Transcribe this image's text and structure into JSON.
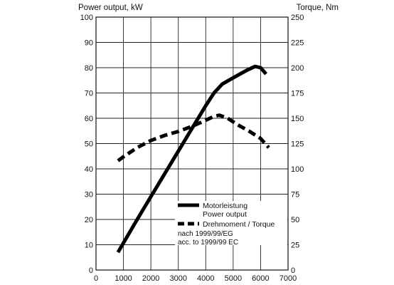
{
  "chart_data": {
    "type": "line",
    "xlabel": "",
    "ylabel_left": "Power output, kW",
    "ylabel_right": "Torque, Nm",
    "xlim": [
      0,
      7000
    ],
    "ylim_left": [
      0,
      100
    ],
    "ylim_right": [
      0,
      250
    ],
    "x_ticks": [
      0,
      1000,
      2000,
      3000,
      4000,
      5000,
      6000,
      7000
    ],
    "y_ticks_left": [
      0,
      10,
      20,
      30,
      40,
      50,
      60,
      70,
      80,
      90,
      100
    ],
    "y_ticks_right": [
      0,
      25,
      50,
      75,
      100,
      125,
      150,
      175,
      200,
      225,
      250
    ],
    "grid": true,
    "legend_position": "lower-right",
    "series": [
      {
        "name": "Motorleistung",
        "name_en": "Power output",
        "axis": "left",
        "style": "solid",
        "points": [
          [
            800,
            7
          ],
          [
            1500,
            20
          ],
          [
            2000,
            29
          ],
          [
            2500,
            38
          ],
          [
            3000,
            47
          ],
          [
            3500,
            56
          ],
          [
            4000,
            65
          ],
          [
            4300,
            70
          ],
          [
            4600,
            73.5
          ],
          [
            5000,
            76
          ],
          [
            5500,
            79
          ],
          [
            5800,
            80.5
          ],
          [
            6000,
            80
          ],
          [
            6200,
            77.5
          ]
        ]
      },
      {
        "name": "Drehmoment / Torque",
        "axis": "right",
        "style": "dashed",
        "points": [
          [
            800,
            108
          ],
          [
            1000,
            112
          ],
          [
            1500,
            121
          ],
          [
            2000,
            128
          ],
          [
            2500,
            133
          ],
          [
            3000,
            137
          ],
          [
            3500,
            142
          ],
          [
            4000,
            148
          ],
          [
            4300,
            152
          ],
          [
            4500,
            153
          ],
          [
            4800,
            150
          ],
          [
            5200,
            143
          ],
          [
            5600,
            137
          ],
          [
            6000,
            130
          ],
          [
            6300,
            121
          ]
        ]
      }
    ],
    "annotation": [
      "nach 1999/99/EG",
      "acc. to 1999/99 EC"
    ]
  }
}
